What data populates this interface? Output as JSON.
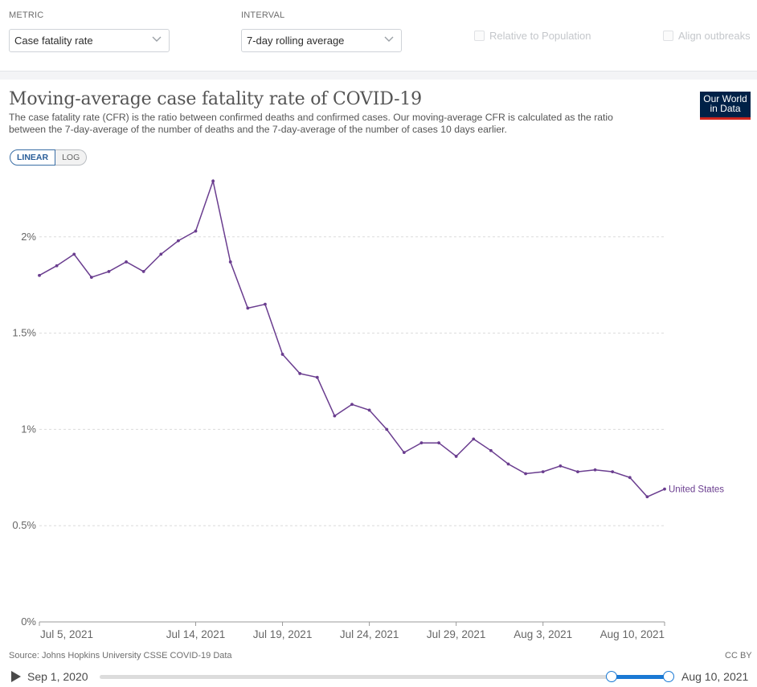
{
  "controls": {
    "metric_label": "METRIC",
    "metric_value": "Case fatality rate",
    "interval_label": "INTERVAL",
    "interval_value": "7-day rolling average",
    "relative_label": "Relative to Population",
    "align_label": "Align outbreaks"
  },
  "header": {
    "title": "Moving-average case fatality rate of COVID-19",
    "subtitle": "The case fatality rate (CFR) is the ratio between confirmed deaths and confirmed cases. Our moving-average CFR is calculated as the ratio between the 7-day-average of the number of deaths and the 7-day-average of the number of cases 10 days earlier.",
    "logo_line1": "Our World",
    "logo_line2": "in Data"
  },
  "scale_toggle": {
    "linear": "LINEAR",
    "log": "LOG"
  },
  "chart_data": {
    "type": "line",
    "title": "Moving-average case fatality rate of COVID-19",
    "xlabel": "",
    "ylabel": "",
    "ylim": [
      0,
      2.5
    ],
    "y_ticks": [
      0,
      0.5,
      1,
      1.5,
      2
    ],
    "y_tick_labels": [
      "0%",
      "0.5%",
      "1%",
      "1.5%",
      "2%"
    ],
    "x_ticks": [
      "Jul 5, 2021",
      "Jul 14, 2021",
      "Jul 19, 2021",
      "Jul 24, 2021",
      "Jul 29, 2021",
      "Aug 3, 2021",
      "Aug 10, 2021"
    ],
    "x_range": [
      "2021-07-05",
      "2021-08-10"
    ],
    "grid": true,
    "series": [
      {
        "name": "United States",
        "color": "#6a3d8f",
        "x": [
          "2021-07-05",
          "2021-07-06",
          "2021-07-07",
          "2021-07-08",
          "2021-07-09",
          "2021-07-10",
          "2021-07-11",
          "2021-07-12",
          "2021-07-13",
          "2021-07-14",
          "2021-07-15",
          "2021-07-16",
          "2021-07-17",
          "2021-07-18",
          "2021-07-19",
          "2021-07-20",
          "2021-07-21",
          "2021-07-22",
          "2021-07-23",
          "2021-07-24",
          "2021-07-25",
          "2021-07-26",
          "2021-07-27",
          "2021-07-28",
          "2021-07-29",
          "2021-07-30",
          "2021-07-31",
          "2021-08-01",
          "2021-08-02",
          "2021-08-03",
          "2021-08-04",
          "2021-08-05",
          "2021-08-06",
          "2021-08-07",
          "2021-08-08",
          "2021-08-09",
          "2021-08-10"
        ],
        "values": [
          1.8,
          1.85,
          1.91,
          1.79,
          1.82,
          1.87,
          1.82,
          1.91,
          1.98,
          2.03,
          2.29,
          1.87,
          1.63,
          1.65,
          1.39,
          1.29,
          1.27,
          1.07,
          1.13,
          1.1,
          1.0,
          0.88,
          0.93,
          0.93,
          0.86,
          0.95,
          0.89,
          0.82,
          0.77,
          0.78,
          0.81,
          0.78,
          0.79,
          0.78,
          0.75,
          0.65,
          0.69
        ]
      }
    ]
  },
  "footer": {
    "source": "Source: Johns Hopkins University CSSE COVID-19 Data",
    "license": "CC BY"
  },
  "timeline": {
    "start_label": "Sep 1, 2020",
    "end_label": "Aug 10, 2021",
    "selected_start_fraction": 0.9,
    "selected_end_fraction": 1.0
  }
}
